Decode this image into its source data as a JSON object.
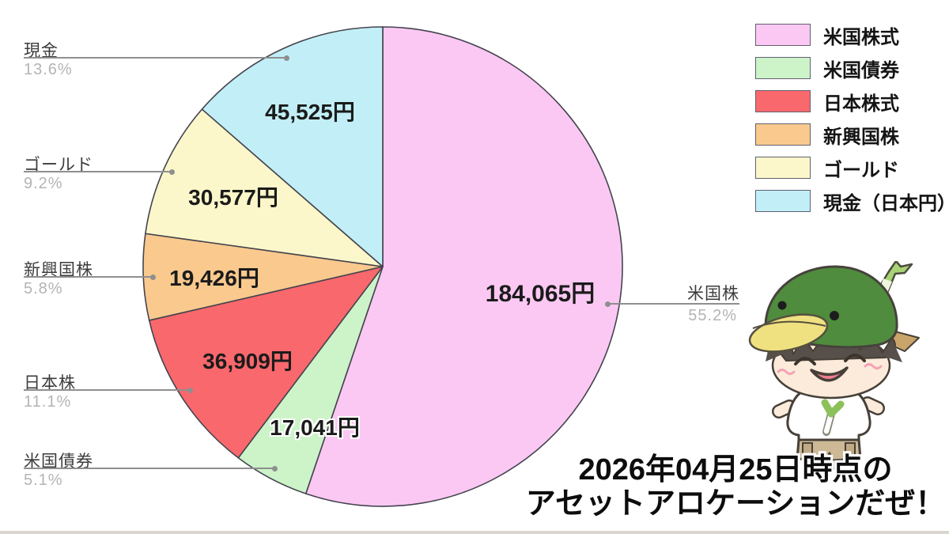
{
  "caption": {
    "line1": "2026年04月25日時点の",
    "line2": "アセットアロケーションだぜ！"
  },
  "chart_data": {
    "type": "pie",
    "title": "アセットアロケーション (2026年04月25日時点)",
    "start": "12-oclock",
    "direction": "clockwise",
    "legend_position": "top-right",
    "slice_outline_color": "#44444e",
    "slices": [
      {
        "legend_label": "米国株式",
        "callout_label": "米国株",
        "percent": 55.2,
        "percent_label": "55.2%",
        "value_label": "184,065円",
        "value_jpy": 184065,
        "color": "#fbc8f3"
      },
      {
        "legend_label": "米国債券",
        "callout_label": "米国債券",
        "percent": 5.1,
        "percent_label": "5.1%",
        "value_label": "17,041円",
        "value_jpy": 17041,
        "color": "#cdf3c9"
      },
      {
        "legend_label": "日本株式",
        "callout_label": "日本株",
        "percent": 11.1,
        "percent_label": "11.1%",
        "value_label": "36,909円",
        "value_jpy": 36909,
        "color": "#f9686c"
      },
      {
        "legend_label": "新興国株",
        "callout_label": "新興国株",
        "percent": 5.8,
        "percent_label": "5.8%",
        "value_label": "19,426円",
        "value_jpy": 19426,
        "color": "#f9c98e"
      },
      {
        "legend_label": "ゴールド",
        "callout_label": "ゴールド",
        "percent": 9.2,
        "percent_label": "9.2%",
        "value_label": "30,577円",
        "value_jpy": 30577,
        "color": "#fbf7ca"
      },
      {
        "legend_label": "現金（日本円）",
        "callout_label": "現金",
        "percent": 13.6,
        "percent_label": "13.6%",
        "value_label": "45,525円",
        "value_jpy": 45525,
        "color": "#c2eff7"
      }
    ]
  }
}
